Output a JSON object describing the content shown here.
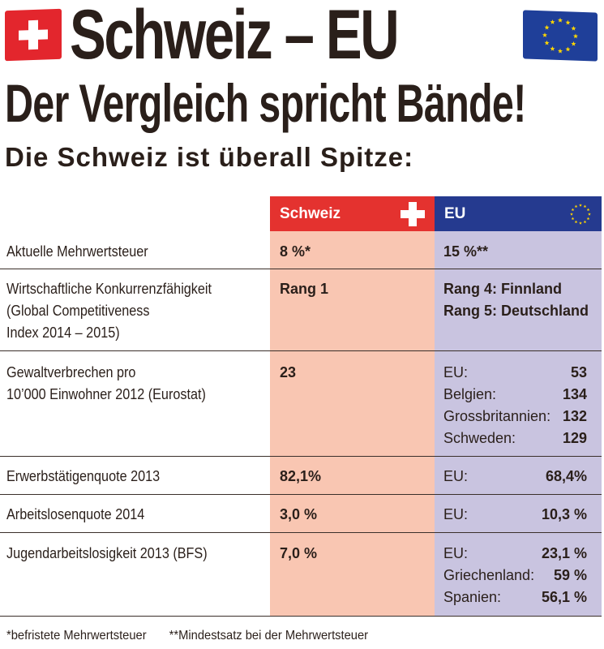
{
  "header": {
    "title": "Schweiz – EU",
    "subtitle": "Der Vergleich spricht Bände!",
    "tagline": "Die Schweiz ist überall Spitze:",
    "flag_left": "swiss-flag",
    "flag_right": "eu-flag"
  },
  "table": {
    "col_ch": "Schweiz",
    "col_eu": "EU",
    "colors": {
      "ch_header": "#e4322f",
      "eu_header": "#253a8f",
      "ch_bg": "#f9c6b2",
      "eu_bg": "#c9c4e0"
    },
    "rows": [
      {
        "label": [
          "Aktuelle Mehrwertsteuer"
        ],
        "ch": "8 %*",
        "eu": [
          "15 %**"
        ]
      },
      {
        "label": [
          "Wirtschaftliche Konkurrenzfähigkeit",
          "(Global Competitiveness",
          "Index 2014 – 2015)"
        ],
        "ch": "Rang 1",
        "eu": [
          "Rang 4: Finnland",
          "Rang 5: Deutschland"
        ]
      },
      {
        "label": [
          "Gewaltverbrechen pro",
          "10’000 Einwohner 2012 (Eurostat)"
        ],
        "ch": "23",
        "eu_items": [
          {
            "k": "EU:",
            "v": "53"
          },
          {
            "k": "Belgien:",
            "v": "134"
          },
          {
            "k": "Grossbritannien:",
            "v": "132"
          },
          {
            "k": "Schweden:",
            "v": "129"
          }
        ]
      },
      {
        "label": [
          "Erwerbstätigenquote 2013"
        ],
        "ch": "82,1%",
        "eu_items": [
          {
            "k": "EU:",
            "v": "68,4%"
          }
        ]
      },
      {
        "label": [
          "Arbeitslosenquote 2014"
        ],
        "ch": "3,0 %",
        "eu_items": [
          {
            "k": "EU:",
            "v": "10,3 %"
          }
        ]
      },
      {
        "label": [
          "Jugendarbeitslosigkeit 2013 (BFS)"
        ],
        "ch": "7,0 %",
        "eu_items": [
          {
            "k": "EU:",
            "v": "23,1 %"
          },
          {
            "k": "Griechenland:",
            "v": "59 %"
          },
          {
            "k": "Spanien:",
            "v": "56,1 %"
          }
        ]
      }
    ]
  },
  "footer": {
    "note1": "*befristete Mehrwertsteuer",
    "note2": "**Mindestsatz bei der Mehrwertsteuer"
  }
}
